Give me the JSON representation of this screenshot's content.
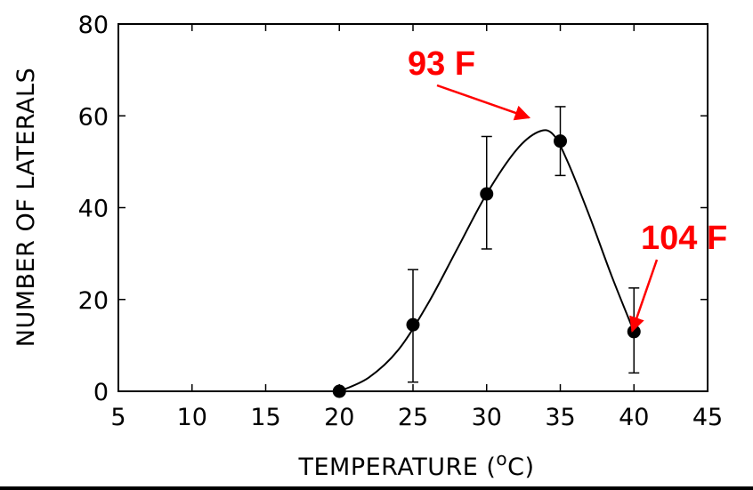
{
  "chart_data": {
    "type": "scatter",
    "title": "",
    "xlabel": "TEMPERATURE (",
    "xlabel_unit_sup": "o",
    "xlabel_unit_tail": "C)",
    "ylabel": "NUMBER OF LATERALS",
    "xlim": [
      5,
      45
    ],
    "ylim": [
      0,
      80
    ],
    "x_ticks": [
      "5",
      "10",
      "15",
      "20",
      "25",
      "30",
      "35",
      "40",
      "45"
    ],
    "y_ticks": [
      "0",
      "20",
      "40",
      "60",
      "80"
    ],
    "grid": false,
    "series": [
      {
        "points": [
          {
            "x": 20,
            "y": 0,
            "err_low": 0,
            "err_high": 0
          },
          {
            "x": 25,
            "y": 14.5,
            "err_low": 2,
            "err_high": 26.5
          },
          {
            "x": 30,
            "y": 43,
            "err_low": 31,
            "err_high": 55.5
          },
          {
            "x": 35,
            "y": 54.5,
            "err_low": 47,
            "err_high": 62
          },
          {
            "x": 40,
            "y": 13,
            "err_low": 4,
            "err_high": 22.5
          }
        ]
      }
    ],
    "fit_curve": [
      [
        20,
        0
      ],
      [
        22,
        3
      ],
      [
        24,
        9
      ],
      [
        26,
        19
      ],
      [
        28,
        31
      ],
      [
        30,
        43
      ],
      [
        32,
        52.5
      ],
      [
        33.5,
        56.5
      ],
      [
        34.5,
        56
      ],
      [
        35.5,
        50
      ],
      [
        37,
        38
      ],
      [
        38.5,
        25
      ],
      [
        40,
        13
      ]
    ],
    "annotations": [
      {
        "text": "93 F",
        "color": "#ff0000",
        "arrow_to": {
          "x": 33,
          "y": 60
        }
      },
      {
        "text": "104 F",
        "color": "#ff0000",
        "arrow_to": {
          "x": 40,
          "y": 13.5
        }
      }
    ]
  }
}
